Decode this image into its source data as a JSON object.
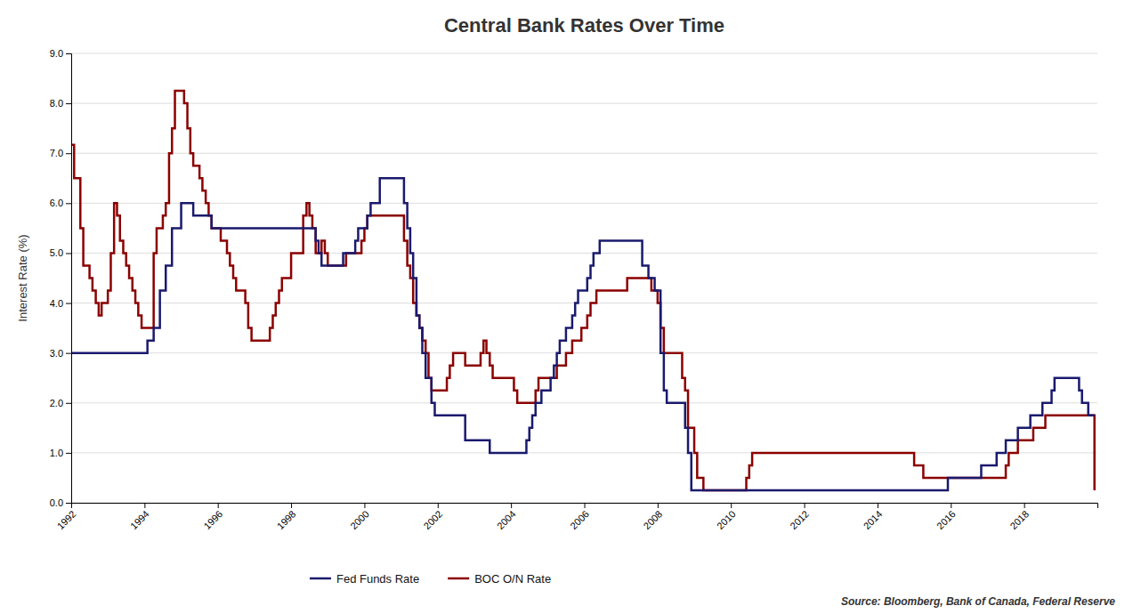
{
  "chart_data": {
    "type": "step",
    "title": "Central Bank Rates Over Time",
    "ylabel": "Interest Rate (%)",
    "annotation": "Source: Bloomberg, Bank of Canada, Federal Reserve",
    "xlim": [
      1992,
      2020
    ],
    "xticks": [
      1992,
      1994,
      1996,
      1998,
      2000,
      2002,
      2004,
      2006,
      2008,
      2010,
      2012,
      2014,
      2016,
      2018
    ],
    "ylim": [
      0.0,
      9.0
    ],
    "yticks": [
      {
        "value": 0.0,
        "label": "0.0"
      },
      {
        "value": 1.0,
        "label": "1.0"
      },
      {
        "value": 2.0,
        "label": "2.0"
      },
      {
        "value": 3.0,
        "label": "3.0"
      },
      {
        "value": 4.0,
        "label": "4.0"
      },
      {
        "value": 5.0,
        "label": "5.0"
      },
      {
        "value": 6.0,
        "label": "6.0"
      },
      {
        "value": 7.0,
        "label": "7.0"
      },
      {
        "value": 8.0,
        "label": "8.0"
      },
      {
        "value": 9.0,
        "label": "9.0"
      }
    ],
    "grid": "y",
    "legend": "bottom",
    "series": [
      {
        "name": "Fed Funds Rate",
        "color": "#1a1a6e",
        "x": [
          1992.0,
          1992.25,
          1992.5,
          1992.75,
          1993.0,
          1993.25,
          1993.5,
          1993.75,
          1994.0,
          1994.08,
          1994.25,
          1994.42,
          1994.58,
          1994.75,
          1994.92,
          1995.0,
          1995.17,
          1995.33,
          1995.5,
          1995.67,
          1995.83,
          1995.92,
          1996.0,
          1996.25,
          1996.5,
          1996.75,
          1997.0,
          1997.25,
          1997.5,
          1997.58,
          1997.75,
          1997.83,
          1998.0,
          1998.25,
          1998.5,
          1998.67,
          1998.75,
          1998.83,
          1999.0,
          1999.25,
          1999.42,
          1999.58,
          1999.75,
          1999.83,
          2000.0,
          2000.08,
          2000.17,
          2000.33,
          2000.42,
          2000.5,
          2000.58,
          2000.75,
          2001.0,
          2001.08,
          2001.17,
          2001.25,
          2001.33,
          2001.42,
          2001.5,
          2001.58,
          2001.67,
          2001.75,
          2001.83,
          2001.92,
          2002.0,
          2002.25,
          2002.5,
          2002.75,
          2003.0,
          2003.25,
          2003.42,
          2003.5,
          2003.75,
          2004.0,
          2004.25,
          2004.42,
          2004.5,
          2004.58,
          2004.67,
          2004.75,
          2004.83,
          2005.0,
          2005.08,
          2005.17,
          2005.25,
          2005.33,
          2005.5,
          2005.58,
          2005.67,
          2005.75,
          2005.83,
          2006.0,
          2006.08,
          2006.17,
          2006.25,
          2006.42,
          2006.5,
          2006.75,
          2007.0,
          2007.17,
          2007.5,
          2007.58,
          2007.75,
          2007.83,
          2007.92,
          2008.0,
          2008.08,
          2008.17,
          2008.25,
          2008.33,
          2008.5,
          2008.67,
          2008.75,
          2008.83,
          2008.92,
          2009.0,
          2009.25,
          2009.5,
          2009.75,
          2010.0,
          2010.25,
          2010.5,
          2010.75,
          2011.0,
          2011.25,
          2011.5,
          2011.75,
          2012.0,
          2012.25,
          2012.5,
          2012.75,
          2013.0,
          2013.25,
          2013.5,
          2013.75,
          2014.0,
          2014.25,
          2014.5,
          2014.75,
          2015.0,
          2015.08,
          2015.83,
          2015.92,
          2016.0,
          2016.25,
          2016.5,
          2016.75,
          2016.83,
          2017.0,
          2017.25,
          2017.5,
          2017.75,
          2017.83,
          2018.0,
          2018.17,
          2018.5,
          2018.58,
          2018.75,
          2018.83,
          2019.0,
          2019.25,
          2019.5,
          2019.58,
          2019.75,
          2019.83,
          2019.92
        ],
        "values": [
          3.0,
          3.0,
          3.0,
          3.0,
          3.0,
          3.0,
          3.0,
          3.0,
          3.0,
          3.25,
          3.5,
          4.25,
          4.75,
          5.5,
          5.5,
          6.0,
          6.0,
          5.75,
          5.75,
          5.75,
          5.5,
          5.5,
          5.5,
          5.5,
          5.5,
          5.5,
          5.5,
          5.5,
          5.5,
          5.5,
          5.5,
          5.5,
          5.5,
          5.5,
          5.5,
          5.25,
          5.0,
          4.75,
          4.75,
          4.75,
          5.0,
          5.0,
          5.25,
          5.5,
          5.5,
          5.75,
          6.0,
          6.0,
          6.5,
          6.5,
          6.5,
          6.5,
          6.5,
          6.0,
          5.5,
          5.0,
          4.5,
          3.75,
          3.5,
          3.0,
          2.5,
          2.5,
          2.0,
          1.75,
          1.75,
          1.75,
          1.75,
          1.25,
          1.25,
          1.25,
          1.0,
          1.0,
          1.0,
          1.0,
          1.0,
          1.25,
          1.5,
          1.75,
          2.0,
          2.0,
          2.25,
          2.25,
          2.5,
          2.75,
          3.0,
          3.25,
          3.5,
          3.5,
          3.75,
          4.0,
          4.25,
          4.25,
          4.5,
          4.75,
          5.0,
          5.25,
          5.25,
          5.25,
          5.25,
          5.25,
          5.25,
          4.75,
          4.5,
          4.5,
          4.25,
          4.25,
          3.0,
          2.25,
          2.0,
          2.0,
          2.0,
          2.0,
          1.5,
          1.0,
          0.25,
          0.25,
          0.25,
          0.25,
          0.25,
          0.25,
          0.25,
          0.25,
          0.25,
          0.25,
          0.25,
          0.25,
          0.25,
          0.25,
          0.25,
          0.25,
          0.25,
          0.25,
          0.25,
          0.25,
          0.25,
          0.25,
          0.25,
          0.25,
          0.25,
          0.25,
          0.25,
          0.25,
          0.5,
          0.5,
          0.5,
          0.5,
          0.5,
          0.75,
          0.75,
          1.0,
          1.25,
          1.25,
          1.5,
          1.5,
          1.75,
          2.0,
          2.0,
          2.25,
          2.5,
          2.5,
          2.5,
          2.25,
          2.0,
          1.75,
          1.75,
          1.75
        ]
      },
      {
        "name": "BOC O/N Rate",
        "color": "#8B0000",
        "x": [
          1992.0,
          1992.08,
          1992.25,
          1992.33,
          1992.5,
          1992.58,
          1992.67,
          1992.75,
          1992.83,
          1993.0,
          1993.08,
          1993.17,
          1993.25,
          1993.33,
          1993.42,
          1993.5,
          1993.58,
          1993.67,
          1993.75,
          1993.83,
          1993.92,
          1994.0,
          1994.17,
          1994.25,
          1994.33,
          1994.5,
          1994.58,
          1994.67,
          1994.75,
          1994.83,
          1994.92,
          1995.0,
          1995.08,
          1995.17,
          1995.25,
          1995.33,
          1995.42,
          1995.5,
          1995.58,
          1995.67,
          1995.75,
          1995.83,
          1995.92,
          1996.0,
          1996.08,
          1996.17,
          1996.25,
          1996.33,
          1996.42,
          1996.5,
          1996.58,
          1996.67,
          1996.75,
          1996.83,
          1996.92,
          1997.0,
          1997.08,
          1997.17,
          1997.25,
          1997.33,
          1997.42,
          1997.5,
          1997.58,
          1997.67,
          1997.75,
          1997.83,
          1997.92,
          1998.0,
          1998.08,
          1998.17,
          1998.25,
          1998.33,
          1998.42,
          1998.5,
          1998.58,
          1998.67,
          1998.75,
          1998.83,
          1998.92,
          1999.0,
          1999.08,
          1999.17,
          1999.25,
          1999.33,
          1999.42,
          1999.5,
          1999.58,
          1999.67,
          1999.75,
          1999.83,
          1999.92,
          2000.0,
          2000.08,
          2000.17,
          2000.25,
          2000.33,
          2000.42,
          2000.5,
          2000.58,
          2000.67,
          2000.75,
          2000.83,
          2000.92,
          2001.0,
          2001.08,
          2001.17,
          2001.25,
          2001.33,
          2001.42,
          2001.5,
          2001.58,
          2001.67,
          2001.75,
          2001.83,
          2001.92,
          2002.0,
          2002.08,
          2002.17,
          2002.25,
          2002.33,
          2002.42,
          2002.5,
          2002.58,
          2002.67,
          2002.75,
          2002.83,
          2002.92,
          2003.0,
          2003.08,
          2003.17,
          2003.25,
          2003.33,
          2003.42,
          2003.5,
          2003.58,
          2003.67,
          2003.75,
          2003.83,
          2003.92,
          2004.0,
          2004.08,
          2004.17,
          2004.25,
          2004.33,
          2004.42,
          2004.5,
          2004.58,
          2004.67,
          2004.75,
          2004.83,
          2004.92,
          2005.0,
          2005.08,
          2005.17,
          2005.25,
          2005.33,
          2005.42,
          2005.5,
          2005.58,
          2005.67,
          2005.75,
          2005.83,
          2005.92,
          2006.0,
          2006.08,
          2006.17,
          2006.25,
          2006.33,
          2006.42,
          2006.5,
          2006.58,
          2006.67,
          2006.75,
          2006.83,
          2006.92,
          2007.0,
          2007.08,
          2007.17,
          2007.25,
          2007.33,
          2007.42,
          2007.5,
          2007.58,
          2007.67,
          2007.75,
          2007.83,
          2007.92,
          2008.0,
          2008.08,
          2008.17,
          2008.25,
          2008.33,
          2008.42,
          2008.5,
          2008.58,
          2008.67,
          2008.75,
          2008.83,
          2008.92,
          2009.0,
          2009.08,
          2009.25,
          2009.33,
          2009.5,
          2009.75,
          2010.0,
          2010.25,
          2010.42,
          2010.5,
          2010.58,
          2010.67,
          2010.75,
          2010.83,
          2010.92,
          2011.0,
          2011.25,
          2011.5,
          2011.75,
          2012.0,
          2012.25,
          2012.5,
          2012.75,
          2013.0,
          2013.25,
          2013.5,
          2013.75,
          2014.0,
          2014.25,
          2014.5,
          2014.75,
          2015.0,
          2015.17,
          2015.25,
          2015.33,
          2015.5,
          2015.75,
          2016.0,
          2016.25,
          2016.5,
          2016.75,
          2017.0,
          2017.25,
          2017.5,
          2017.58,
          2017.75,
          2017.83,
          2018.0,
          2018.17,
          2018.25,
          2018.5,
          2018.58,
          2018.75,
          2018.92,
          2019.0,
          2019.25,
          2019.5,
          2019.75,
          2019.92
        ],
        "values": [
          7.17,
          6.5,
          5.5,
          4.75,
          4.5,
          4.25,
          4.0,
          3.75,
          4.0,
          4.25,
          5.0,
          6.0,
          5.75,
          5.25,
          5.0,
          4.75,
          4.5,
          4.25,
          4.0,
          3.75,
          3.5,
          3.5,
          3.5,
          5.0,
          5.5,
          5.75,
          6.0,
          7.0,
          7.5,
          8.25,
          8.25,
          8.25,
          8.0,
          7.5,
          7.0,
          6.75,
          6.75,
          6.5,
          6.25,
          6.0,
          5.75,
          5.5,
          5.5,
          5.5,
          5.25,
          5.25,
          5.0,
          4.75,
          4.5,
          4.25,
          4.25,
          4.25,
          4.0,
          3.5,
          3.25,
          3.25,
          3.25,
          3.25,
          3.25,
          3.25,
          3.5,
          3.75,
          4.0,
          4.25,
          4.5,
          4.5,
          4.5,
          5.0,
          5.0,
          5.0,
          5.0,
          5.75,
          6.0,
          5.75,
          5.5,
          5.0,
          5.0,
          5.25,
          5.0,
          4.75,
          4.75,
          4.75,
          4.75,
          4.75,
          4.75,
          5.0,
          5.0,
          5.0,
          5.0,
          5.0,
          5.25,
          5.5,
          5.75,
          5.75,
          5.75,
          5.75,
          5.75,
          5.75,
          5.75,
          5.75,
          5.75,
          5.75,
          5.75,
          5.75,
          5.25,
          4.75,
          4.5,
          4.0,
          3.75,
          3.5,
          3.25,
          3.0,
          2.5,
          2.25,
          2.25,
          2.25,
          2.25,
          2.25,
          2.5,
          2.75,
          3.0,
          3.0,
          3.0,
          3.0,
          2.75,
          2.75,
          2.75,
          2.75,
          2.75,
          3.0,
          3.25,
          3.0,
          2.75,
          2.5,
          2.5,
          2.5,
          2.5,
          2.5,
          2.5,
          2.5,
          2.25,
          2.0,
          2.0,
          2.0,
          2.0,
          2.0,
          2.0,
          2.25,
          2.5,
          2.5,
          2.5,
          2.5,
          2.5,
          2.5,
          2.75,
          2.75,
          2.75,
          3.0,
          3.0,
          3.25,
          3.25,
          3.25,
          3.5,
          3.5,
          3.75,
          4.0,
          4.0,
          4.25,
          4.25,
          4.25,
          4.25,
          4.25,
          4.25,
          4.25,
          4.25,
          4.25,
          4.25,
          4.5,
          4.5,
          4.5,
          4.5,
          4.5,
          4.5,
          4.5,
          4.5,
          4.25,
          4.25,
          4.0,
          3.5,
          3.0,
          3.0,
          3.0,
          3.0,
          3.0,
          3.0,
          2.5,
          2.25,
          1.5,
          1.5,
          1.0,
          0.5,
          0.25,
          0.25,
          0.25,
          0.25,
          0.25,
          0.25,
          0.5,
          0.75,
          1.0,
          1.0,
          1.0,
          1.0,
          1.0,
          1.0,
          1.0,
          1.0,
          1.0,
          1.0,
          1.0,
          1.0,
          1.0,
          1.0,
          1.0,
          1.0,
          1.0,
          1.0,
          1.0,
          1.0,
          1.0,
          0.75,
          0.75,
          0.5,
          0.5,
          0.5,
          0.5,
          0.5,
          0.5,
          0.5,
          0.5,
          0.5,
          0.5,
          0.75,
          1.0,
          1.0,
          1.25,
          1.25,
          1.25,
          1.5,
          1.5,
          1.75,
          1.75,
          1.75,
          1.75,
          1.75,
          1.75,
          1.75,
          0.25
        ]
      }
    ]
  }
}
